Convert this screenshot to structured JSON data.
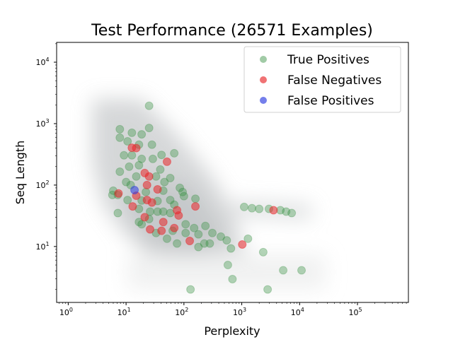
{
  "chart_data": {
    "type": "scatter",
    "title": "Test Performance (26571 Examples)",
    "xlabel": "Perplexity",
    "ylabel": "Seq Length",
    "xscale": "log",
    "yscale": "log",
    "xlim": [
      0.63,
      760000
    ],
    "ylim": [
      1.23,
      21000
    ],
    "grid": false,
    "legend_position": "top-right",
    "x_ticks": [
      {
        "value": 1,
        "base": "10",
        "exp": "0"
      },
      {
        "value": 10,
        "base": "10",
        "exp": "1"
      },
      {
        "value": 100,
        "base": "10",
        "exp": "2"
      },
      {
        "value": 1000,
        "base": "10",
        "exp": "3"
      },
      {
        "value": 10000,
        "base": "10",
        "exp": "4"
      },
      {
        "value": 100000,
        "base": "10",
        "exp": "5"
      }
    ],
    "y_ticks": [
      {
        "value": 10,
        "base": "10",
        "exp": "1"
      },
      {
        "value": 100,
        "base": "10",
        "exp": "2"
      },
      {
        "value": 1000,
        "base": "10",
        "exp": "3"
      },
      {
        "value": 10000,
        "base": "10",
        "exp": "4"
      }
    ],
    "series": [
      {
        "name": "True Positives",
        "color": "#2e8b3a",
        "points": [
          [
            25,
            1950
          ],
          [
            25,
            850
          ],
          [
            7.8,
            810
          ],
          [
            7.8,
            590
          ],
          [
            12.6,
            710
          ],
          [
            10.6,
            515
          ],
          [
            16.7,
            455
          ],
          [
            68,
            330
          ],
          [
            41,
            310
          ],
          [
            9.2,
            305
          ],
          [
            18.6,
            267
          ],
          [
            29,
            267
          ],
          [
            11.3,
            199
          ],
          [
            16.7,
            210
          ],
          [
            39,
            179
          ],
          [
            58,
            130
          ],
          [
            7.8,
            165
          ],
          [
            15,
            138
          ],
          [
            10,
            112
          ],
          [
            33,
            138
          ],
          [
            95,
            77
          ],
          [
            44,
            81
          ],
          [
            6.0,
            81
          ],
          [
            5.8,
            69
          ],
          [
            10.6,
            57
          ],
          [
            7.2,
            35
          ],
          [
            16.7,
            41
          ],
          [
            35,
            55
          ],
          [
            58,
            57
          ],
          [
            100,
            66
          ],
          [
            158,
            60
          ],
          [
            235,
            21.6
          ],
          [
            58,
            35
          ],
          [
            35,
            37
          ],
          [
            16.7,
            25
          ],
          [
            25,
            28
          ],
          [
            44,
            37
          ],
          [
            51,
            13.4
          ],
          [
            76,
            11.2
          ],
          [
            107,
            16.6
          ],
          [
            178,
            15.8
          ],
          [
            225,
            11.2
          ],
          [
            310,
            16.6
          ],
          [
            435,
            14.5
          ],
          [
            550,
            12.6
          ],
          [
            650,
            9.3
          ],
          [
            1280,
            13.4
          ],
          [
            2350,
            8.1
          ],
          [
            575,
            5.0
          ],
          [
            690,
            2.95
          ],
          [
            2800,
            2.0
          ],
          [
            130,
            2.0
          ],
          [
            5200,
            4.1
          ],
          [
            10800,
            4.1
          ],
          [
            1100,
            44
          ],
          [
            1500,
            42
          ],
          [
            2000,
            41
          ],
          [
            2950,
            41
          ],
          [
            4650,
            39
          ],
          [
            5850,
            37
          ],
          [
            7300,
            35
          ],
          [
            18.6,
            670
          ],
          [
            12,
            100
          ],
          [
            22,
            77
          ],
          [
            18.6,
            56
          ],
          [
            26,
            37
          ],
          [
            68,
            48
          ],
          [
            85,
            90
          ],
          [
            46,
            112
          ],
          [
            12.6,
            305
          ],
          [
            28,
            455
          ],
          [
            18.6,
            23
          ],
          [
            107,
            23
          ],
          [
            150,
            20
          ],
          [
            64,
            18
          ],
          [
            33,
            16.6
          ],
          [
            178,
            9.8
          ],
          [
            280,
            11.2
          ],
          [
            7.2,
            69
          ]
        ]
      },
      {
        "name": "False Negatives",
        "color": "#e8262a",
        "points": [
          [
            12.6,
            405
          ],
          [
            15,
            400
          ],
          [
            21,
            157
          ],
          [
            25,
            138
          ],
          [
            51,
            240
          ],
          [
            7.4,
            73
          ],
          [
            15,
            67
          ],
          [
            23,
            57
          ],
          [
            28,
            52
          ],
          [
            13,
            45
          ],
          [
            21,
            30
          ],
          [
            44,
            25
          ],
          [
            41,
            18
          ],
          [
            26,
            19
          ],
          [
            81,
            32
          ],
          [
            76,
            39
          ],
          [
            68,
            20
          ],
          [
            126,
            12.3
          ],
          [
            158,
            45
          ],
          [
            1020,
            10.8
          ],
          [
            3540,
            39
          ],
          [
            23,
            100
          ],
          [
            35,
            85
          ]
        ]
      },
      {
        "name": "False Positives",
        "color": "#2b3ae0",
        "points": [
          [
            14,
            83
          ]
        ]
      }
    ]
  }
}
